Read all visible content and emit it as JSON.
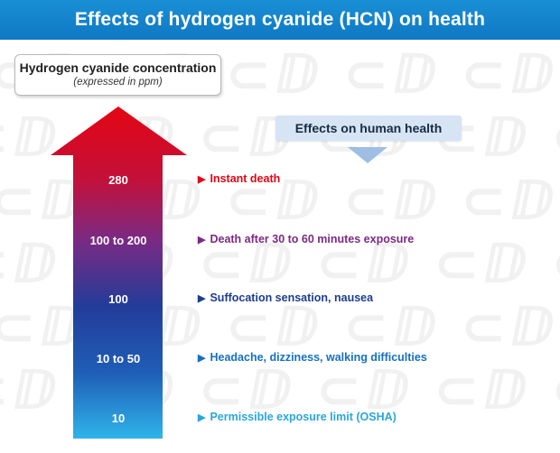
{
  "title": "Effects of hydrogen cyanide (HCN) on health",
  "concentration": {
    "title": "Hydrogen cyanide concentration",
    "subtitle": "(expressed in ppm)"
  },
  "effects_header": "Effects on human health",
  "levels": [
    {
      "ppm": "280",
      "effect": "Instant death",
      "color": "#e30613"
    },
    {
      "ppm": "100 to 200",
      "effect": "Death after 30 to 60 minutes exposure",
      "color": "#7b2a83"
    },
    {
      "ppm": "100",
      "effect": "Suffocation sensation, nausea",
      "color": "#1d3d8f"
    },
    {
      "ppm": "10 to 50",
      "effect": "Headache, dizziness, walking difficulties",
      "color": "#1570c4"
    },
    {
      "ppm": "10",
      "effect": "Permissible exposure limit (OSHA)",
      "color": "#2aa6dd"
    }
  ],
  "arrow_gradient": [
    "#e30613",
    "#a41e5a",
    "#5b2d8c",
    "#233c99",
    "#1f5db6",
    "#2fb4ea"
  ],
  "watermark_text": "CD",
  "colors": {
    "banner": "#0f78c2",
    "effects_box": "#d6e4f4"
  }
}
